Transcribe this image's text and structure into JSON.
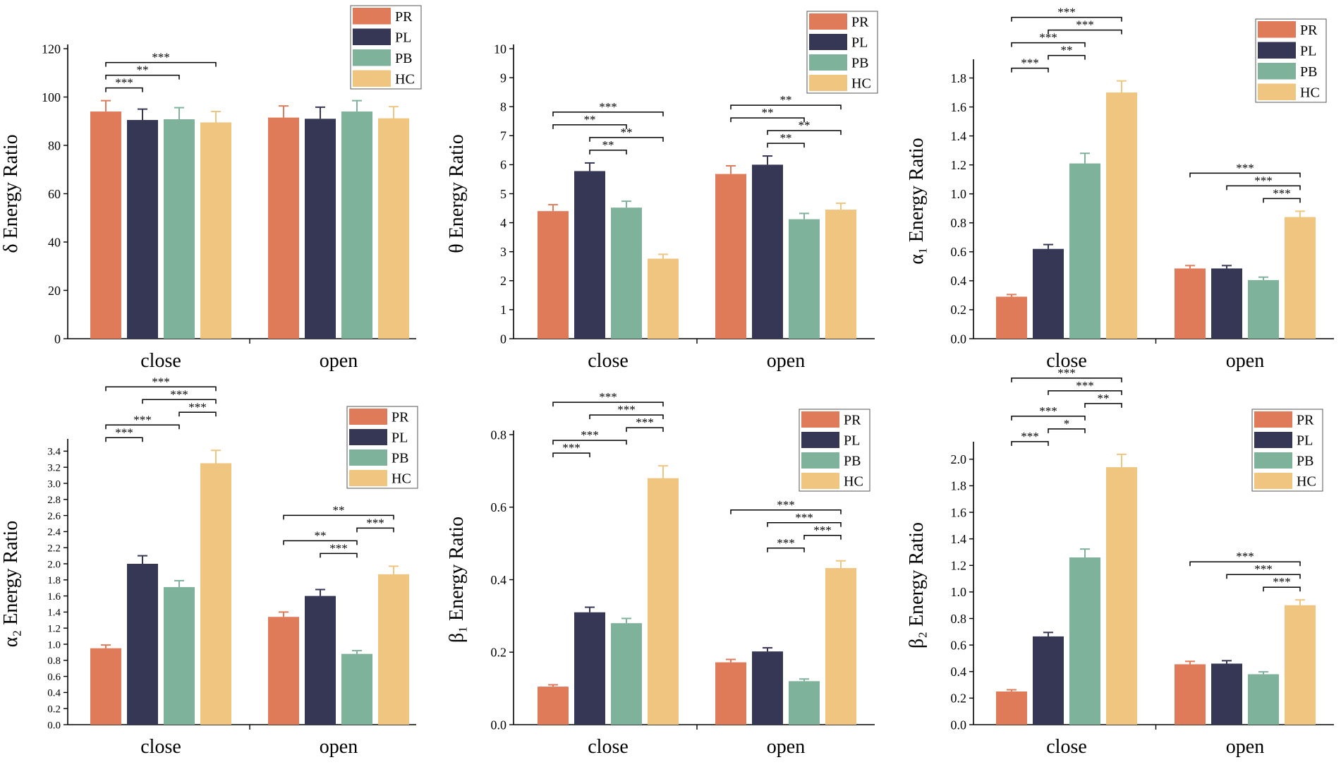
{
  "chart_data": [
    {
      "type": "bar",
      "ylabel": "δ Energy Ratio",
      "categories": [
        "close",
        "open"
      ],
      "ylim": [
        0,
        120
      ],
      "yticks": [
        "0",
        "20",
        "40",
        "60",
        "80",
        "100",
        "120"
      ],
      "series": [
        {
          "name": "PR",
          "values": [
            94.0,
            91.5
          ],
          "errors": [
            4.5,
            4.8
          ]
        },
        {
          "name": "PL",
          "values": [
            90.5,
            91.0
          ],
          "errors": [
            4.5,
            4.8
          ]
        },
        {
          "name": "PB",
          "values": [
            90.8,
            94.0
          ],
          "errors": [
            4.8,
            4.5
          ]
        },
        {
          "name": "HC",
          "values": [
            89.5,
            91.2
          ],
          "errors": [
            4.5,
            4.8
          ]
        }
      ],
      "significance": [
        {
          "group": 0,
          "from": 0,
          "to": 3,
          "label": "***",
          "level": 0
        },
        {
          "group": 0,
          "from": 0,
          "to": 2,
          "label": "**",
          "level": 1
        },
        {
          "group": 0,
          "from": 0,
          "to": 1,
          "label": "***",
          "level": 2
        }
      ]
    },
    {
      "type": "bar",
      "ylabel": "θ Energy Ratio",
      "categories": [
        "close",
        "open"
      ],
      "ylim": [
        0,
        10
      ],
      "yticks": [
        "0",
        "1",
        "2",
        "3",
        "4",
        "5",
        "6",
        "7",
        "8",
        "9",
        "10"
      ],
      "series": [
        {
          "name": "PR",
          "values": [
            4.4,
            5.68
          ],
          "errors": [
            0.22,
            0.28
          ]
        },
        {
          "name": "PL",
          "values": [
            5.78,
            6.0
          ],
          "errors": [
            0.28,
            0.3
          ]
        },
        {
          "name": "PB",
          "values": [
            4.52,
            4.12
          ],
          "errors": [
            0.22,
            0.2
          ]
        },
        {
          "name": "HC",
          "values": [
            2.76,
            4.45
          ],
          "errors": [
            0.15,
            0.22
          ]
        }
      ],
      "significance": [
        {
          "group": 0,
          "from": 0,
          "to": 3,
          "label": "***",
          "level": 0
        },
        {
          "group": 0,
          "from": 0,
          "to": 2,
          "label": "**",
          "level": 1
        },
        {
          "group": 0,
          "from": 1,
          "to": 3,
          "label": "**",
          "level": 2
        },
        {
          "group": 0,
          "from": 1,
          "to": 2,
          "label": "**",
          "level": 3
        },
        {
          "group": 1,
          "from": 0,
          "to": 3,
          "label": "**",
          "level": 0
        },
        {
          "group": 1,
          "from": 0,
          "to": 2,
          "label": "**",
          "level": 1
        },
        {
          "group": 1,
          "from": 1,
          "to": 3,
          "label": "**",
          "level": 2
        },
        {
          "group": 1,
          "from": 1,
          "to": 2,
          "label": "**",
          "level": 3
        }
      ]
    },
    {
      "type": "bar",
      "ylabel": "α₁ Energy Ratio",
      "categories": [
        "close",
        "open"
      ],
      "ylim": [
        0,
        1.9
      ],
      "yticks": [
        "0.0",
        "0.2",
        "0.4",
        "0.6",
        "0.8",
        "1.0",
        "1.2",
        "1.4",
        "1.6",
        "1.8"
      ],
      "series": [
        {
          "name": "PR",
          "values": [
            0.29,
            0.485
          ],
          "errors": [
            0.015,
            0.02
          ]
        },
        {
          "name": "PL",
          "values": [
            0.62,
            0.485
          ],
          "errors": [
            0.03,
            0.02
          ]
        },
        {
          "name": "PB",
          "values": [
            1.21,
            0.405
          ],
          "errors": [
            0.07,
            0.02
          ]
        },
        {
          "name": "HC",
          "values": [
            1.7,
            0.84
          ],
          "errors": [
            0.08,
            0.04
          ]
        }
      ],
      "significance": [
        {
          "group": 0,
          "from": 0,
          "to": 3,
          "label": "***",
          "level": 0
        },
        {
          "group": 0,
          "from": 1,
          "to": 3,
          "label": "***",
          "level": 1
        },
        {
          "group": 0,
          "from": 0,
          "to": 2,
          "label": "***",
          "level": 2
        },
        {
          "group": 0,
          "from": 1,
          "to": 2,
          "label": "**",
          "level": 3
        },
        {
          "group": 0,
          "from": 0,
          "to": 1,
          "label": "***",
          "level": 4
        },
        {
          "group": 1,
          "from": 0,
          "to": 3,
          "label": "***",
          "level": 0
        },
        {
          "group": 1,
          "from": 1,
          "to": 3,
          "label": "***",
          "level": 1
        },
        {
          "group": 1,
          "from": 2,
          "to": 3,
          "label": "***",
          "level": 2
        }
      ]
    },
    {
      "type": "bar",
      "ylabel": "α₂ Energy Ratio",
      "categories": [
        "close",
        "open"
      ],
      "ylim": [
        0,
        3.5
      ],
      "yticks": [
        "0.0",
        "0.2",
        "0.4",
        "0.6",
        "0.8",
        "1.0",
        "1.2",
        "1.4",
        "1.6",
        "1.8",
        "2.0",
        "2.2",
        "2.4",
        "2.6",
        "2.8",
        "3.0",
        "3.2",
        "3.4"
      ],
      "series": [
        {
          "name": "PR",
          "values": [
            0.95,
            1.34
          ],
          "errors": [
            0.04,
            0.06
          ]
        },
        {
          "name": "PL",
          "values": [
            2.0,
            1.6
          ],
          "errors": [
            0.1,
            0.08
          ]
        },
        {
          "name": "PB",
          "values": [
            1.71,
            0.88
          ],
          "errors": [
            0.08,
            0.04
          ]
        },
        {
          "name": "HC",
          "values": [
            3.25,
            1.87
          ],
          "errors": [
            0.16,
            0.1
          ]
        }
      ],
      "significance": [
        {
          "group": 0,
          "from": 0,
          "to": 3,
          "label": "***",
          "level": 0
        },
        {
          "group": 0,
          "from": 1,
          "to": 3,
          "label": "***",
          "level": 1
        },
        {
          "group": 0,
          "from": 2,
          "to": 3,
          "label": "***",
          "level": 2
        },
        {
          "group": 0,
          "from": 0,
          "to": 2,
          "label": "***",
          "level": 3
        },
        {
          "group": 0,
          "from": 0,
          "to": 1,
          "label": "***",
          "level": 4
        },
        {
          "group": 1,
          "from": 0,
          "to": 3,
          "label": "**",
          "level": 0
        },
        {
          "group": 1,
          "from": 2,
          "to": 3,
          "label": "***",
          "level": 1
        },
        {
          "group": 1,
          "from": 0,
          "to": 2,
          "label": "**",
          "level": 2
        },
        {
          "group": 1,
          "from": 1,
          "to": 2,
          "label": "***",
          "level": 3
        }
      ]
    },
    {
      "type": "bar",
      "ylabel": "β₁ Energy Ratio",
      "categories": [
        "close",
        "open"
      ],
      "ylim": [
        0,
        0.8
      ],
      "yticks": [
        "0.0",
        "0.2",
        "0.4",
        "0.6",
        "0.8"
      ],
      "series": [
        {
          "name": "PR",
          "values": [
            0.105,
            0.172
          ],
          "errors": [
            0.005,
            0.008
          ]
        },
        {
          "name": "PL",
          "values": [
            0.31,
            0.202
          ],
          "errors": [
            0.014,
            0.01
          ]
        },
        {
          "name": "PB",
          "values": [
            0.28,
            0.12
          ],
          "errors": [
            0.013,
            0.006
          ]
        },
        {
          "name": "HC",
          "values": [
            0.68,
            0.432
          ],
          "errors": [
            0.034,
            0.02
          ]
        }
      ],
      "significance": [
        {
          "group": 0,
          "from": 0,
          "to": 3,
          "label": "***",
          "level": 0
        },
        {
          "group": 0,
          "from": 1,
          "to": 3,
          "label": "***",
          "level": 1
        },
        {
          "group": 0,
          "from": 2,
          "to": 3,
          "label": "***",
          "level": 2
        },
        {
          "group": 0,
          "from": 0,
          "to": 2,
          "label": "***",
          "level": 3
        },
        {
          "group": 0,
          "from": 0,
          "to": 1,
          "label": "***",
          "level": 4
        },
        {
          "group": 1,
          "from": 0,
          "to": 3,
          "label": "***",
          "level": 0
        },
        {
          "group": 1,
          "from": 1,
          "to": 3,
          "label": "***",
          "level": 1
        },
        {
          "group": 1,
          "from": 2,
          "to": 3,
          "label": "***",
          "level": 2
        },
        {
          "group": 1,
          "from": 1,
          "to": 2,
          "label": "***",
          "level": 3
        }
      ]
    },
    {
      "type": "bar",
      "ylabel": "β₂ Energy Ratio",
      "categories": [
        "close",
        "open"
      ],
      "ylim": [
        0,
        2.1
      ],
      "yticks": [
        "0.0",
        "0.2",
        "0.4",
        "0.6",
        "0.8",
        "1.0",
        "1.2",
        "1.4",
        "1.6",
        "1.8",
        "2.0"
      ],
      "series": [
        {
          "name": "PR",
          "values": [
            0.25,
            0.455
          ],
          "errors": [
            0.013,
            0.022
          ]
        },
        {
          "name": "PL",
          "values": [
            0.665,
            0.46
          ],
          "errors": [
            0.03,
            0.022
          ]
        },
        {
          "name": "PB",
          "values": [
            1.26,
            0.38
          ],
          "errors": [
            0.063,
            0.018
          ]
        },
        {
          "name": "HC",
          "values": [
            1.94,
            0.9
          ],
          "errors": [
            0.097,
            0.04
          ]
        }
      ],
      "significance": [
        {
          "group": 0,
          "from": 0,
          "to": 3,
          "label": "***",
          "level": 0
        },
        {
          "group": 0,
          "from": 1,
          "to": 3,
          "label": "***",
          "level": 1
        },
        {
          "group": 0,
          "from": 2,
          "to": 3,
          "label": "**",
          "level": 2
        },
        {
          "group": 0,
          "from": 0,
          "to": 2,
          "label": "***",
          "level": 3
        },
        {
          "group": 0,
          "from": 1,
          "to": 2,
          "label": "*",
          "level": 4
        },
        {
          "group": 0,
          "from": 0,
          "to": 1,
          "label": "***",
          "level": 5
        },
        {
          "group": 1,
          "from": 0,
          "to": 3,
          "label": "***",
          "level": 0
        },
        {
          "group": 1,
          "from": 1,
          "to": 3,
          "label": "***",
          "level": 1
        },
        {
          "group": 1,
          "from": 2,
          "to": 3,
          "label": "***",
          "level": 2
        }
      ]
    }
  ],
  "colors": {
    "PR": "#E07B5A",
    "PL": "#353755",
    "PB": "#7EB29A",
    "HC": "#F0C57F"
  }
}
